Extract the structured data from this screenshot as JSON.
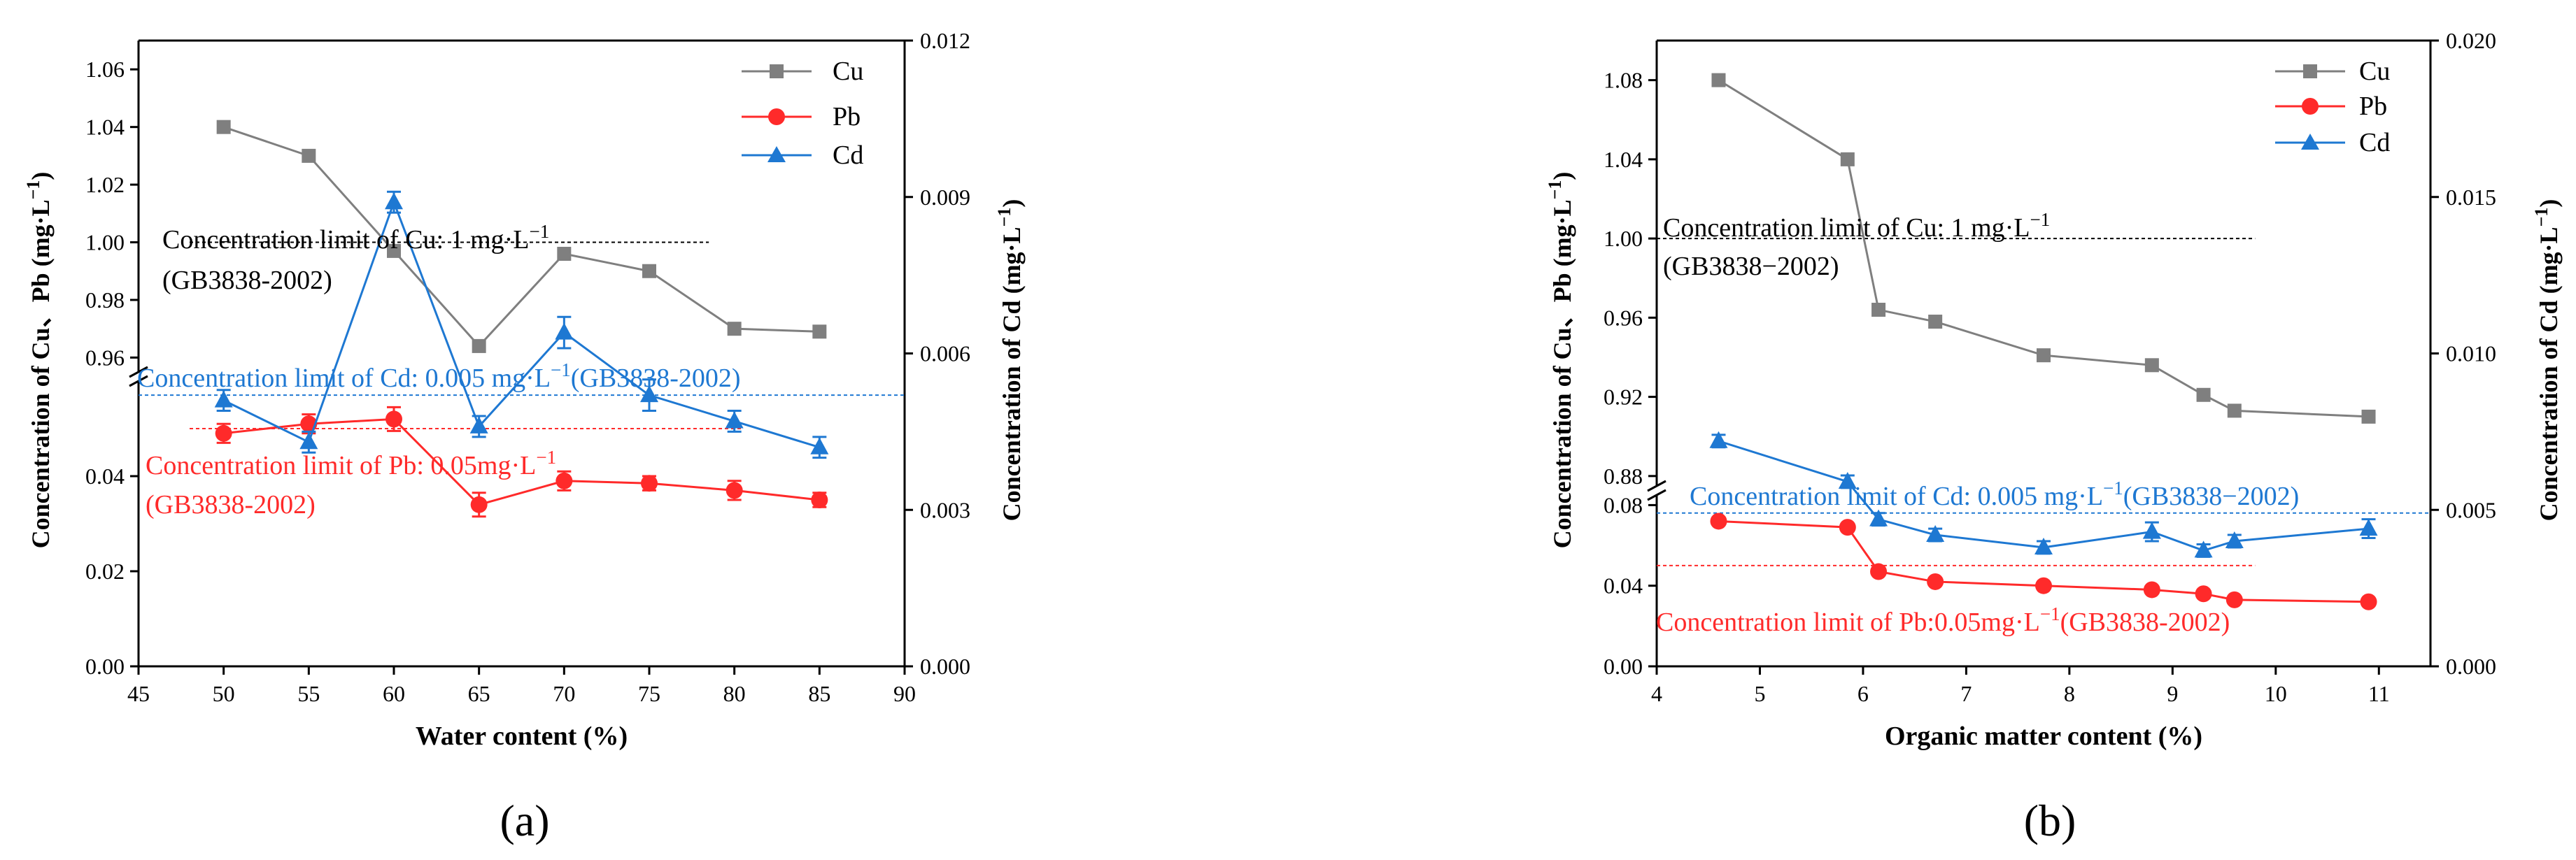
{
  "panels": [
    {
      "label": "(a)",
      "ylabel_left": "Concentration of  Cu、Pb (mg·L",
      "ylabel_left_sup": "−1",
      "ylabel_left_end": ")",
      "ylabel_right": "Concentration of  Cd  (mg·L",
      "ylabel_right_sup": "−1",
      "ylabel_right_end": ")",
      "legend": [
        "Cu",
        "Pb",
        "Cd"
      ],
      "annotations": {
        "cu_line1": "Concentration limit of Cu: 1 mg·L",
        "cu_line1_sup": "−1",
        "cu_line2": "(GB3838-2002)",
        "cd_line1": "Concentration limit of Cd: 0.005 mg·L",
        "cd_line1_sup": "−1",
        "cd_line1_end": "(GB3838-2002)",
        "pb_line1": "Concentration limit of Pb: 0.05mg·L",
        "pb_line1_sup": "−1",
        "pb_line2": "(GB3838-2002)"
      }
    },
    {
      "label": "(b)",
      "ylabel_left": "Concentration of Cu、Pb (mg·L",
      "ylabel_left_sup": "−1",
      "ylabel_left_end": ")",
      "ylabel_right": "Concentration of  Cd  (mg·L",
      "ylabel_right_sup": "−1",
      "ylabel_right_end": ")",
      "legend": [
        "Cu",
        "Pb",
        "Cd"
      ],
      "annotations": {
        "cu_line1": "Concentration limit of Cu: 1 mg·L",
        "cu_line1_sup": "−1",
        "cu_line2": "(GB3838−2002)",
        "cd_line1": "Concentration limit of Cd: 0.005 mg·L",
        "cd_line1_sup": "−1",
        "cd_line1_end": "(GB3838−2002)",
        "pb_line1": "Concentration limit of Pb:0.05mg·L",
        "pb_line1_sup": "−1",
        "pb_line1_end": "(GB3838-2002)"
      }
    }
  ],
  "chart_data": [
    {
      "type": "line",
      "panel": "(a)",
      "xlabel": "Water content (%)",
      "xlim": [
        45,
        90
      ],
      "x_ticks": [
        "45",
        "50",
        "55",
        "60",
        "65",
        "70",
        "75",
        "80",
        "85",
        "90"
      ],
      "y_left_broken_axis": true,
      "y_left_lower_range": [
        0,
        0.06
      ],
      "y_left_lower_ticks": [
        "0.00",
        "0.02",
        "0.04"
      ],
      "y_left_upper_range": [
        0.955,
        1.07
      ],
      "y_left_upper_ticks": [
        "0.96",
        "0.98",
        "1.00",
        "1.02",
        "1.04",
        "1.06"
      ],
      "y_right_range": [
        0,
        0.012
      ],
      "y_right_ticks": [
        "0.000",
        "0.003",
        "0.006",
        "0.009",
        "0.012"
      ],
      "x": [
        50,
        55,
        60,
        65,
        70,
        75,
        80,
        85
      ],
      "series": [
        {
          "name": "Cu",
          "axis": "left",
          "color": "#7f7f7f",
          "marker": "square",
          "values": [
            1.04,
            1.03,
            0.997,
            0.964,
            0.996,
            0.99,
            0.97,
            0.969
          ]
        },
        {
          "name": "Pb",
          "axis": "left",
          "color": "#ff2a2a",
          "marker": "circle",
          "values": [
            0.049,
            0.051,
            0.052,
            0.034,
            0.039,
            0.0385,
            0.037,
            0.035
          ],
          "errors": [
            0.002,
            0.002,
            0.0025,
            0.0025,
            0.002,
            0.0015,
            0.002,
            0.0015
          ]
        },
        {
          "name": "Cd",
          "axis": "right",
          "color": "#1e78d2",
          "marker": "triangle",
          "values": [
            0.0051,
            0.0043,
            0.0089,
            0.0046,
            0.0064,
            0.0052,
            0.0047,
            0.0042
          ],
          "errors": [
            0.0002,
            0.0002,
            0.0002,
            0.0002,
            0.0003,
            0.0003,
            0.0002,
            0.0002
          ]
        }
      ],
      "limit_lines": [
        {
          "metal": "Cu",
          "axis": "left",
          "value": 1.0,
          "color": "#000000",
          "x_from": 48,
          "x_to": 78.5
        },
        {
          "metal": "Cd",
          "axis": "right",
          "value": 0.0052,
          "color": "#1e78d2",
          "x_from": 45,
          "x_to": 90
        },
        {
          "metal": "Pb",
          "axis": "left",
          "value": 0.05,
          "color": "#ff2a2a",
          "x_from": 48,
          "x_to": 80.5
        }
      ],
      "legend_position": "top-right"
    },
    {
      "type": "line",
      "panel": "(b)",
      "xlabel": "Organic matter content (%)",
      "xlim": [
        4,
        11.5
      ],
      "x_ticks": [
        "4",
        "5",
        "6",
        "7",
        "8",
        "9",
        "10",
        "11"
      ],
      "y_left_broken_axis": true,
      "y_left_lower_range": [
        0,
        0.085
      ],
      "y_left_lower_ticks": [
        "0.00",
        "0.04",
        "0.08"
      ],
      "y_left_upper_range": [
        0.875,
        1.1
      ],
      "y_left_upper_ticks": [
        "0.88",
        "0.92",
        "0.96",
        "1.00",
        "1.04",
        "1.08"
      ],
      "y_right_range": [
        0,
        0.02
      ],
      "y_right_ticks": [
        "0.000",
        "0.005",
        "0.010",
        "0.015",
        "0.020"
      ],
      "x": [
        4.6,
        5.85,
        6.15,
        6.7,
        7.75,
        8.8,
        9.3,
        9.6,
        10.9
      ],
      "series": [
        {
          "name": "Cu",
          "axis": "left",
          "color": "#7f7f7f",
          "marker": "square",
          "values": [
            1.08,
            1.04,
            0.964,
            0.958,
            0.941,
            0.936,
            0.921,
            0.913,
            0.91
          ]
        },
        {
          "name": "Pb",
          "axis": "left",
          "color": "#ff2a2a",
          "marker": "circle",
          "values": [
            0.072,
            0.069,
            0.047,
            0.042,
            0.04,
            0.038,
            0.036,
            0.033,
            0.032
          ],
          "errors": [
            0,
            0,
            0,
            0,
            0,
            0,
            0,
            0,
            0
          ]
        },
        {
          "name": "Cd",
          "axis": "right",
          "color": "#1e78d2",
          "marker": "triangle",
          "values": [
            0.0072,
            0.0059,
            0.0047,
            0.0042,
            0.0038,
            0.0043,
            0.0037,
            0.004,
            0.0044
          ],
          "errors": [
            0.0002,
            0.0002,
            0.0002,
            0.0002,
            0.0002,
            0.0003,
            0.0002,
            0.0002,
            0.0003
          ]
        }
      ],
      "limit_lines": [
        {
          "metal": "Cu",
          "axis": "left",
          "value": 1.0,
          "color": "#000000",
          "x_from": 4,
          "x_to": 9.8
        },
        {
          "metal": "Cd",
          "axis": "right",
          "value": 0.0049,
          "color": "#1e78d2",
          "x_from": 4,
          "x_to": 11.5
        },
        {
          "metal": "Pb",
          "axis": "left",
          "value": 0.05,
          "color": "#ff2a2a",
          "x_from": 4,
          "x_to": 9.8
        }
      ],
      "legend_position": "top-right"
    }
  ]
}
